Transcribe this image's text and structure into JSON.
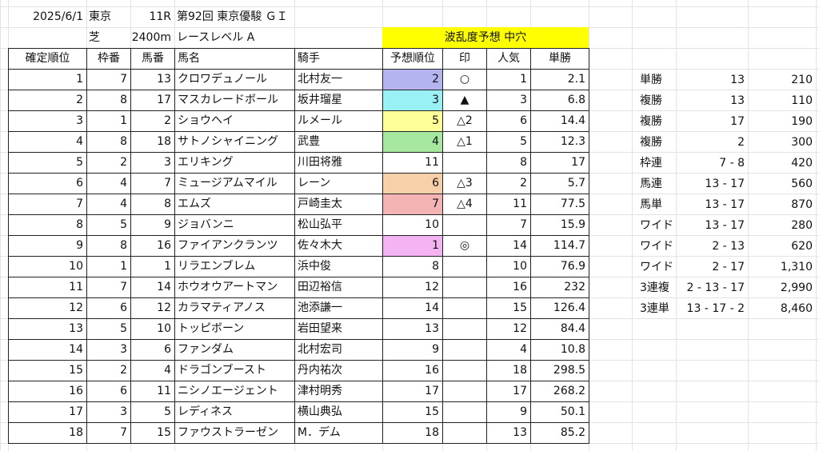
{
  "header": {
    "date": "2025/6/1",
    "venue": "東京",
    "race_no": "11R",
    "race_name": "第92回 東京優駿 ＧＩ",
    "surface": "芝",
    "distance": "2400m",
    "level": "レースレベル A",
    "banner": "波乱度予想 中穴"
  },
  "columns": [
    "確定順位",
    "枠番",
    "馬番",
    "馬名",
    "騎手",
    "予想順位",
    "印",
    "人気",
    "単勝"
  ],
  "colors": {
    "rank1": "#b4b4f0",
    "rank2": "#99f0f5",
    "rank3": "#ffff99",
    "rank4": "#a6e8a0",
    "rank5": "#f7cfa8",
    "rank6": "#f4b4b4",
    "rank7": "#f4b4f4",
    "banner": "#ffff00"
  },
  "rows": [
    {
      "pos": "1",
      "waku": "7",
      "uma": "13",
      "name": "クロワデュノール",
      "jockey": "北村友一",
      "pred": "2",
      "mark": "○",
      "pop": "1",
      "odds": "2.1",
      "color": "#b4b4f0"
    },
    {
      "pos": "2",
      "waku": "8",
      "uma": "17",
      "name": "マスカレードボール",
      "jockey": "坂井瑠星",
      "pred": "3",
      "mark": "▲",
      "pop": "3",
      "odds": "6.8",
      "color": "#99f0f5"
    },
    {
      "pos": "3",
      "waku": "1",
      "uma": "2",
      "name": "ショウヘイ",
      "jockey": "ルメール",
      "pred": "5",
      "mark": "△2",
      "pop": "6",
      "odds": "14.4",
      "color": "#ffff99"
    },
    {
      "pos": "4",
      "waku": "8",
      "uma": "18",
      "name": "サトノシャイニング",
      "jockey": "武豊",
      "pred": "4",
      "mark": "△1",
      "pop": "5",
      "odds": "12.3",
      "color": "#a6e8a0"
    },
    {
      "pos": "5",
      "waku": "2",
      "uma": "3",
      "name": "エリキング",
      "jockey": "川田将雅",
      "pred": "11",
      "mark": "",
      "pop": "8",
      "odds": "17",
      "color": ""
    },
    {
      "pos": "6",
      "waku": "4",
      "uma": "7",
      "name": "ミュージアムマイル",
      "jockey": "レーン",
      "pred": "6",
      "mark": "△3",
      "pop": "2",
      "odds": "5.7",
      "color": "#f7cfa8"
    },
    {
      "pos": "7",
      "waku": "4",
      "uma": "8",
      "name": "エムズ",
      "jockey": "戸崎圭太",
      "pred": "7",
      "mark": "△4",
      "pop": "11",
      "odds": "77.5",
      "color": "#f4b4b4"
    },
    {
      "pos": "8",
      "waku": "5",
      "uma": "9",
      "name": "ジョバンニ",
      "jockey": "松山弘平",
      "pred": "10",
      "mark": "",
      "pop": "7",
      "odds": "15.9",
      "color": ""
    },
    {
      "pos": "9",
      "waku": "8",
      "uma": "16",
      "name": "ファイアンクランツ",
      "jockey": "佐々木大",
      "pred": "1",
      "mark": "◎",
      "pop": "14",
      "odds": "114.7",
      "color": "#f4b4f4"
    },
    {
      "pos": "10",
      "waku": "1",
      "uma": "1",
      "name": "リラエンブレム",
      "jockey": "浜中俊",
      "pred": "8",
      "mark": "",
      "pop": "10",
      "odds": "76.9",
      "color": ""
    },
    {
      "pos": "11",
      "waku": "7",
      "uma": "14",
      "name": "ホウオウアートマン",
      "jockey": "田辺裕信",
      "pred": "12",
      "mark": "",
      "pop": "16",
      "odds": "232",
      "color": ""
    },
    {
      "pos": "12",
      "waku": "6",
      "uma": "12",
      "name": "カラマティアノス",
      "jockey": "池添謙一",
      "pred": "14",
      "mark": "",
      "pop": "15",
      "odds": "126.4",
      "color": ""
    },
    {
      "pos": "13",
      "waku": "5",
      "uma": "10",
      "name": "トッピボーン",
      "jockey": "岩田望来",
      "pred": "13",
      "mark": "",
      "pop": "12",
      "odds": "84.4",
      "color": ""
    },
    {
      "pos": "14",
      "waku": "3",
      "uma": "6",
      "name": "ファンダム",
      "jockey": "北村宏司",
      "pred": "9",
      "mark": "",
      "pop": "4",
      "odds": "10.8",
      "color": ""
    },
    {
      "pos": "15",
      "waku": "2",
      "uma": "4",
      "name": "ドラゴンブースト",
      "jockey": "丹内祐次",
      "pred": "16",
      "mark": "",
      "pop": "18",
      "odds": "298.5",
      "color": ""
    },
    {
      "pos": "16",
      "waku": "6",
      "uma": "11",
      "name": "ニシノエージェント",
      "jockey": "津村明秀",
      "pred": "17",
      "mark": "",
      "pop": "17",
      "odds": "268.2",
      "color": ""
    },
    {
      "pos": "17",
      "waku": "3",
      "uma": "5",
      "name": "レディネス",
      "jockey": "横山典弘",
      "pred": "15",
      "mark": "",
      "pop": "9",
      "odds": "50.1",
      "color": ""
    },
    {
      "pos": "18",
      "waku": "7",
      "uma": "15",
      "name": "ファウストラーゼン",
      "jockey": "M．デム",
      "pred": "18",
      "mark": "",
      "pop": "13",
      "odds": "85.2",
      "color": ""
    }
  ],
  "payouts": [
    {
      "type": "単勝",
      "combo": "13",
      "amount": "210"
    },
    {
      "type": "複勝",
      "combo": "13",
      "amount": "110"
    },
    {
      "type": "複勝",
      "combo": "17",
      "amount": "190"
    },
    {
      "type": "複勝",
      "combo": "2",
      "amount": "300"
    },
    {
      "type": "枠連",
      "combo": "7 - 8",
      "amount": "420"
    },
    {
      "type": "馬連",
      "combo": "13 - 17",
      "amount": "560"
    },
    {
      "type": "馬単",
      "combo": "13 - 17",
      "amount": "870"
    },
    {
      "type": "ワイド",
      "combo": "13 - 17",
      "amount": "280"
    },
    {
      "type": "ワイド",
      "combo": "2 - 13",
      "amount": "620"
    },
    {
      "type": "ワイド",
      "combo": "2 - 17",
      "amount": "1,310"
    },
    {
      "type": "3連複",
      "combo": "2 - 13 - 17",
      "amount": "2,990"
    },
    {
      "type": "3連単",
      "combo": "13 - 17 - 2",
      "amount": "8,460"
    }
  ]
}
